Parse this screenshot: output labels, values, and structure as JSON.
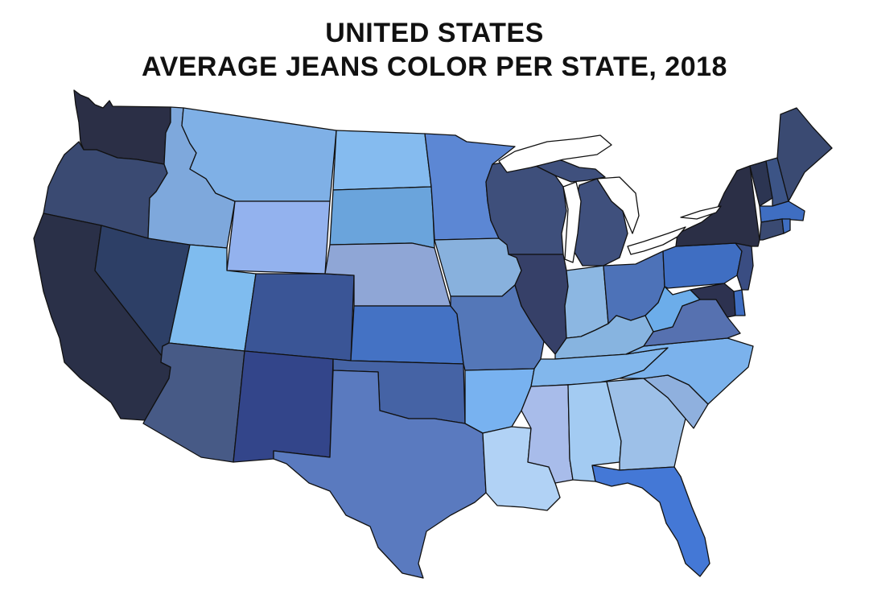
{
  "title": {
    "line1": "UNITED STATES",
    "line2": "AVERAGE JEANS COLOR PER STATE, 2018"
  },
  "states": [
    {
      "id": "WA",
      "color": "#2b2f46"
    },
    {
      "id": "OR",
      "color": "#3a4a72"
    },
    {
      "id": "CA",
      "color": "#2a3048"
    },
    {
      "id": "NV",
      "color": "#2d3f66"
    },
    {
      "id": "ID",
      "color": "#7ea8dc"
    },
    {
      "id": "MT",
      "color": "#7fb0e6"
    },
    {
      "id": "WY",
      "color": "#93b2ee"
    },
    {
      "id": "UT",
      "color": "#7fbcef"
    },
    {
      "id": "AZ",
      "color": "#475a86"
    },
    {
      "id": "CO",
      "color": "#3a5596"
    },
    {
      "id": "NM",
      "color": "#33458a"
    },
    {
      "id": "ND",
      "color": "#85bbef"
    },
    {
      "id": "SD",
      "color": "#6aa4dc"
    },
    {
      "id": "NE",
      "color": "#8fa6d6"
    },
    {
      "id": "KS",
      "color": "#4472c4"
    },
    {
      "id": "OK",
      "color": "#4563a5"
    },
    {
      "id": "TX",
      "color": "#5a7abf"
    },
    {
      "id": "MN",
      "color": "#5c87d4"
    },
    {
      "id": "IA",
      "color": "#88b1dd"
    },
    {
      "id": "MO",
      "color": "#5477b8"
    },
    {
      "id": "AR",
      "color": "#78b2f0"
    },
    {
      "id": "LA",
      "color": "#b1d2f5"
    },
    {
      "id": "WI",
      "color": "#3e4f7b"
    },
    {
      "id": "IL",
      "color": "#364068"
    },
    {
      "id": "MI",
      "color": "#3f507d"
    },
    {
      "id": "IN",
      "color": "#8cb7e2"
    },
    {
      "id": "OH",
      "color": "#4d72b8"
    },
    {
      "id": "KY",
      "color": "#87b4e0"
    },
    {
      "id": "TN",
      "color": "#82b7ec"
    },
    {
      "id": "MS",
      "color": "#a8bcea"
    },
    {
      "id": "AL",
      "color": "#a3cbf2"
    },
    {
      "id": "GA",
      "color": "#9dc0e8"
    },
    {
      "id": "FL",
      "color": "#4478d6"
    },
    {
      "id": "SC",
      "color": "#8fb0de"
    },
    {
      "id": "NC",
      "color": "#7bb2ec"
    },
    {
      "id": "VA",
      "color": "#5671b0"
    },
    {
      "id": "WV",
      "color": "#6cadea"
    },
    {
      "id": "PA",
      "color": "#3f6ec2"
    },
    {
      "id": "NY",
      "color": "#2b2f46"
    },
    {
      "id": "VT",
      "color": "#2c3552"
    },
    {
      "id": "NH",
      "color": "#3c5486"
    },
    {
      "id": "ME",
      "color": "#3a4a72"
    },
    {
      "id": "MA",
      "color": "#3f6ec2"
    },
    {
      "id": "CT",
      "color": "#3a4a72"
    },
    {
      "id": "NJ",
      "color": "#3a4d82"
    },
    {
      "id": "DE",
      "color": "#3f6ec2"
    },
    {
      "id": "MD",
      "color": "#2d3250"
    }
  ]
}
